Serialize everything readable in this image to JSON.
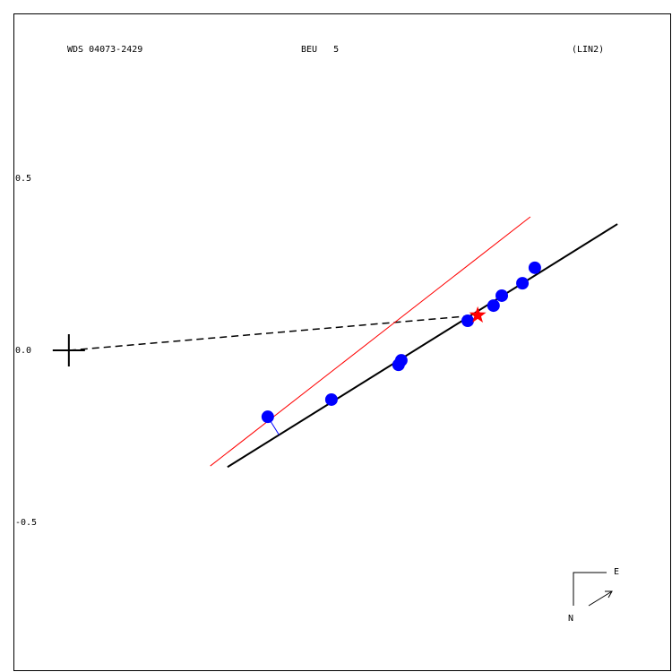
{
  "chart_data": {
    "type": "scatter",
    "header": [
      "WDS 04073-2429",
      "BEU   5",
      "(LIN2)"
    ],
    "compass": [
      "E",
      "N"
    ],
    "xlim": [
      -0.161,
      1.75
    ],
    "ylim": [
      -0.932,
      0.979
    ],
    "yticks": [
      0.5,
      {
        "value": 0,
        "label": "0.0"
      },
      -0.5
    ],
    "x": [
      0.578,
      0.763,
      0.958,
      0.966,
      1.159,
      1.234,
      1.258,
      1.318,
      1.354
    ],
    "y": [
      -0.193,
      -0.143,
      -0.042,
      -0.029,
      0.086,
      0.13,
      0.159,
      0.195,
      0.24
    ],
    "color": "#0000ff",
    "fit_line": {
      "x": [
        0.461,
        1.594
      ],
      "y": [
        -0.339,
        0.367
      ],
      "color": "#000000"
    },
    "red_line": {
      "x": [
        0.411,
        1.341
      ],
      "y": [
        -0.336,
        0.388
      ],
      "color": "#ff0000"
    },
    "star": {
      "x": 1.188,
      "y": 0.102,
      "color": "#ff0000"
    }
  }
}
